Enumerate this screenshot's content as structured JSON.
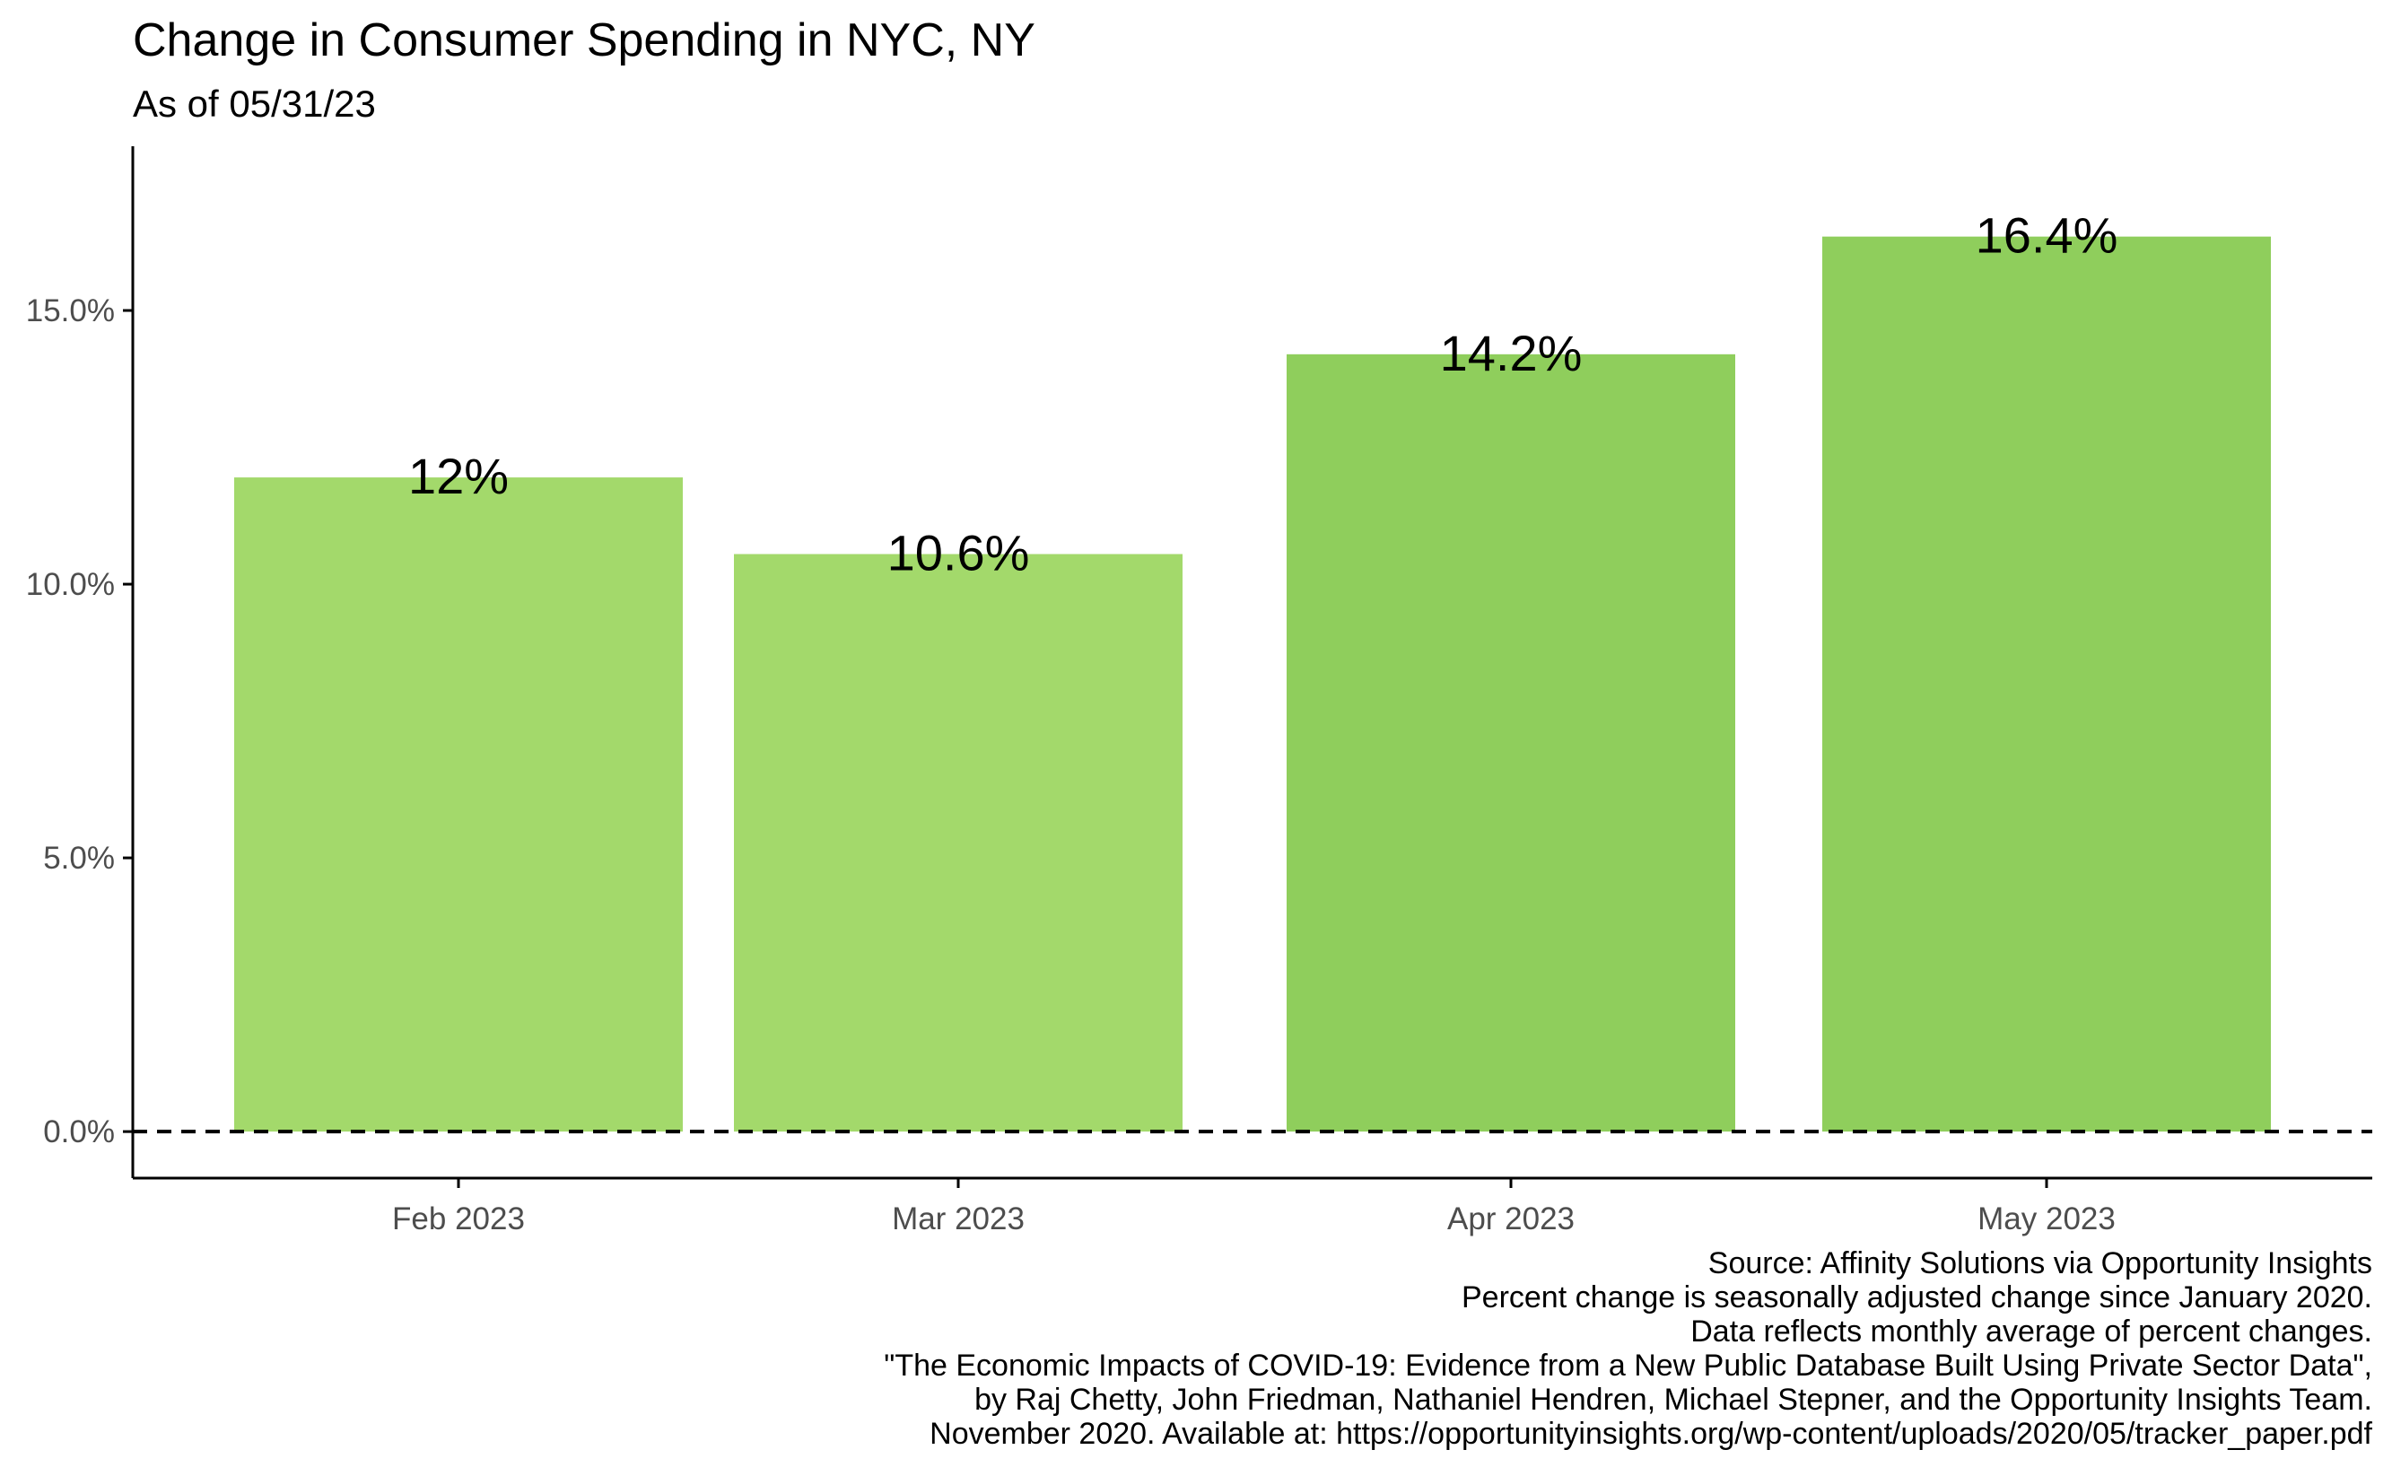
{
  "chart_data": {
    "type": "bar",
    "title": "Change in Consumer Spending in NYC, NY",
    "subtitle": "As of 05/31/23",
    "categories": [
      "Feb 2023",
      "Mar 2023",
      "Apr 2023",
      "May 2023"
    ],
    "values": [
      11.95,
      10.55,
      14.2,
      16.35
    ],
    "data_labels": [
      "12%",
      "10.6%",
      "14.2%",
      "16.4%"
    ],
    "bar_colors": [
      "#a3d96b",
      "#a3d96b",
      "#8fce5c",
      "#8fce5c"
    ],
    "xlabel": "",
    "ylabel": "",
    "ylim": [
      -0.85,
      18
    ],
    "y_ticks": [
      0,
      5,
      10,
      15
    ],
    "y_tick_labels": [
      "0.0%",
      "5.0%",
      "10.0%",
      "15.0%"
    ],
    "reference_line": {
      "value": 0,
      "style": "dashed"
    },
    "grid": false,
    "legend": "none"
  },
  "caption": [
    "Source: Affinity Solutions via Opportunity Insights",
    "Percent change is seasonally adjusted change since January 2020.",
    "Data reflects monthly average of percent changes.",
    "\"The Economic Impacts of COVID-19: Evidence from a New Public Database Built Using Private Sector Data\",",
    "by Raj Chetty, John Friedman, Nathaniel Hendren, Michael Stepner, and the Opportunity Insights Team.",
    "November 2020. Available at: https://opportunityinsights.org/wp-content/uploads/2020/05/tracker_paper.pdf"
  ],
  "colors": {
    "axis": "#000000",
    "tick_text": "#4d4d4d",
    "text": "#000000"
  }
}
